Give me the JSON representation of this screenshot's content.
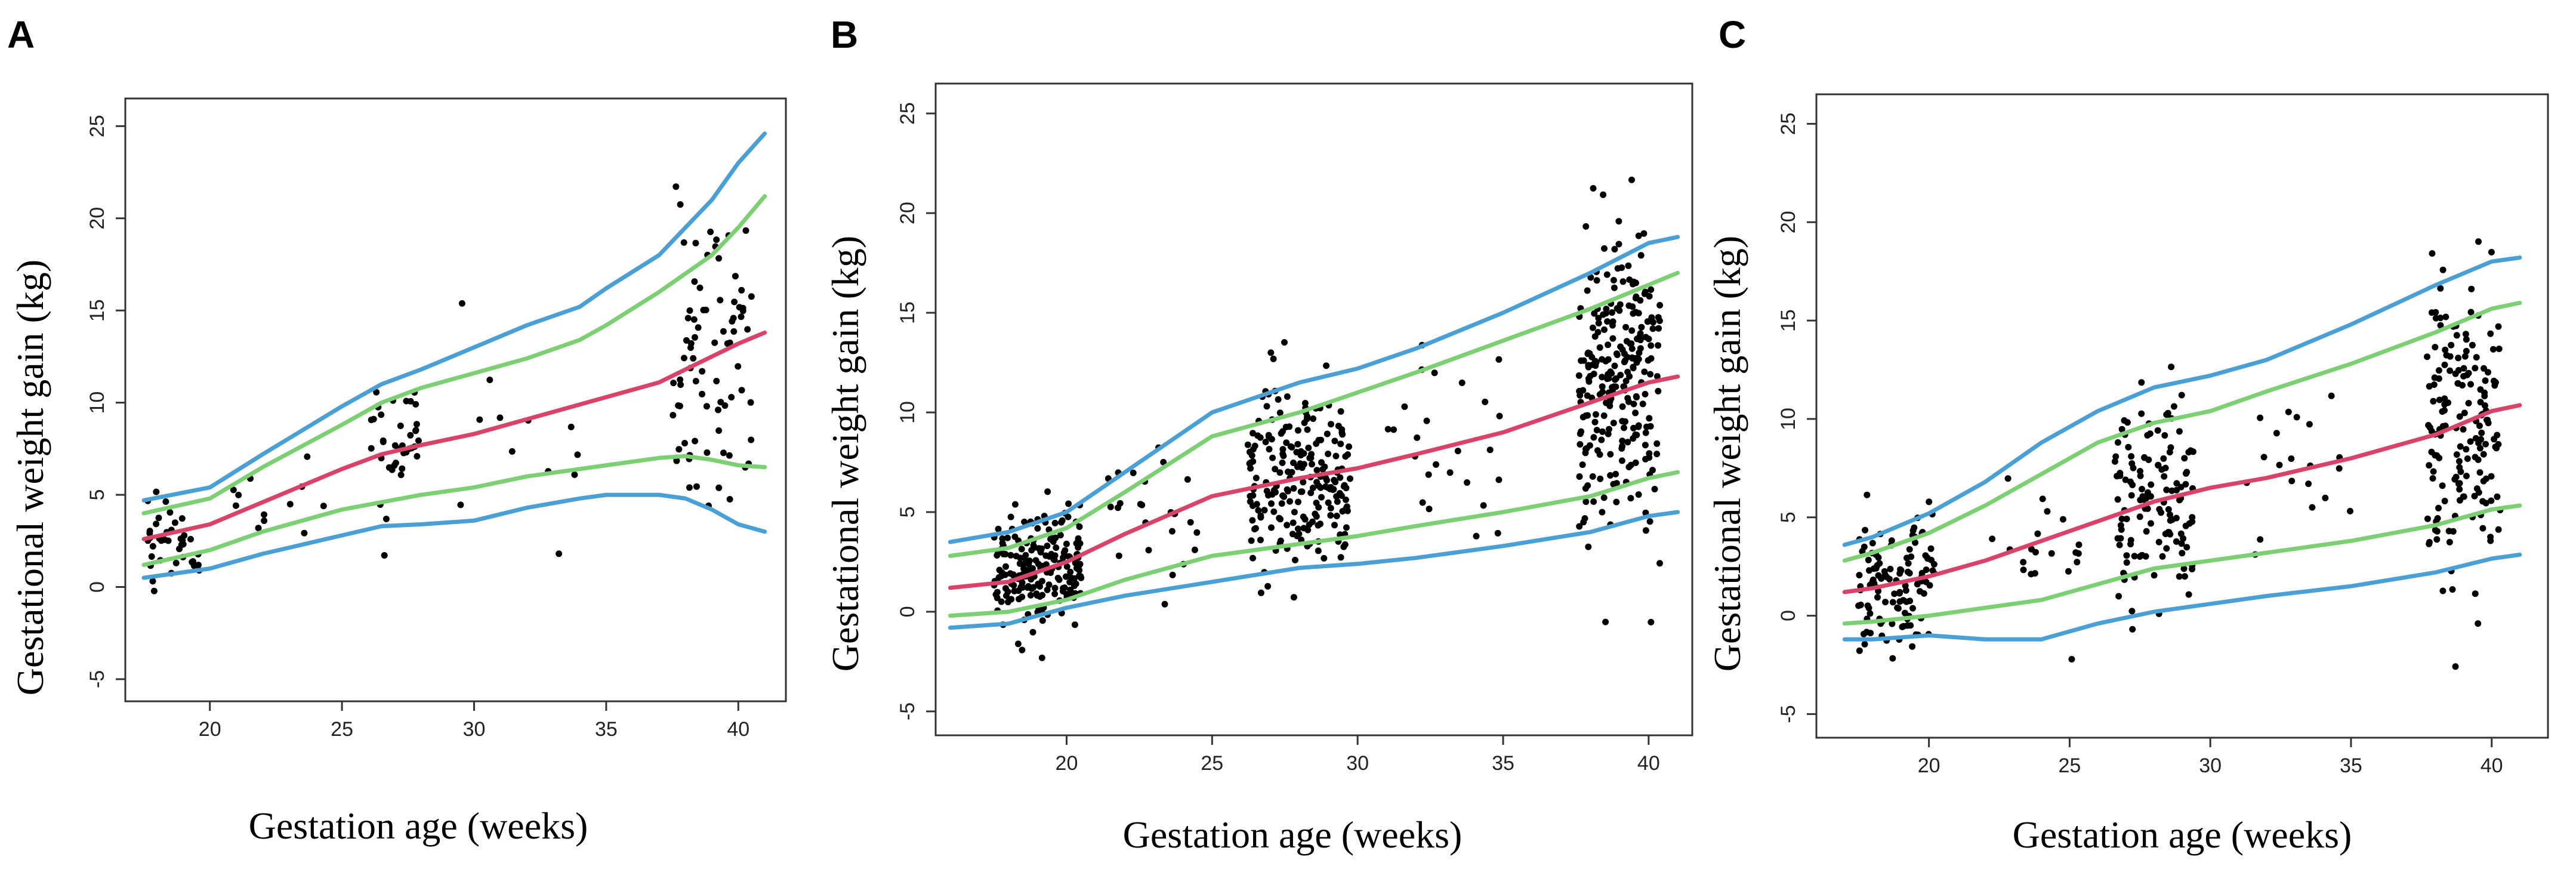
{
  "colors": {
    "p5_p95": "#4a9fd5",
    "p10_p90": "#7ccf72",
    "median": "#d9436a",
    "points": "#000000"
  },
  "chart_data": [
    {
      "type": "scatter",
      "panel": "A",
      "xlabel": "Gestation age (weeks)",
      "ylabel": "Gestational weight gain (kg)",
      "xlim": [
        16.8,
        41.8
      ],
      "ylim": [
        -6.2,
        26.5
      ],
      "xticks": [
        20,
        25,
        30,
        35,
        40
      ],
      "yticks": [
        -5,
        0,
        5,
        10,
        15,
        20,
        25
      ],
      "curves": {
        "p5": {
          "x": [
            17.5,
            20,
            22,
            25,
            26.5,
            28,
            30,
            32,
            34,
            35,
            37,
            38,
            39,
            40,
            41
          ],
          "y": [
            0.5,
            1.0,
            1.8,
            2.8,
            3.3,
            3.4,
            3.6,
            4.3,
            4.8,
            5.0,
            5.0,
            4.8,
            4.2,
            3.4,
            3.0
          ]
        },
        "p10": {
          "x": [
            17.5,
            20,
            22,
            25,
            26.5,
            28,
            30,
            32,
            34,
            35,
            37,
            38,
            39,
            40,
            41
          ],
          "y": [
            1.2,
            2.0,
            3.0,
            4.2,
            4.6,
            5.0,
            5.4,
            6.0,
            6.4,
            6.6,
            7.0,
            7.1,
            6.9,
            6.6,
            6.5
          ]
        },
        "p50": {
          "x": [
            17.5,
            20,
            22,
            25,
            26.5,
            28,
            30,
            32,
            34,
            35,
            37,
            38,
            39,
            40,
            41
          ],
          "y": [
            2.6,
            3.4,
            4.6,
            6.4,
            7.2,
            7.7,
            8.3,
            9.1,
            9.9,
            10.3,
            11.1,
            11.8,
            12.5,
            13.2,
            13.8
          ]
        },
        "p90": {
          "x": [
            17.5,
            20,
            22,
            25,
            26.5,
            28,
            30,
            32,
            34,
            35,
            37,
            38,
            39,
            40,
            41
          ],
          "y": [
            4.0,
            4.8,
            6.5,
            8.8,
            10.0,
            10.8,
            11.6,
            12.4,
            13.4,
            14.2,
            16.0,
            17.0,
            18.0,
            19.5,
            21.2
          ]
        },
        "p95": {
          "x": [
            17.5,
            20,
            22,
            25,
            26.5,
            28,
            30,
            32,
            34,
            35,
            37,
            38,
            39,
            40,
            41
          ],
          "y": [
            4.7,
            5.4,
            7.2,
            9.8,
            11.0,
            11.8,
            13.0,
            14.2,
            15.2,
            16.2,
            18.0,
            19.5,
            21.0,
            23.0,
            24.6
          ]
        }
      },
      "clusters": [
        {
          "x_center": 18.6,
          "x_spread": 1.0,
          "y_mean": 2.8,
          "y_sd": 1.2,
          "n": 40
        },
        {
          "x_center": 22.5,
          "x_spread": 2.0,
          "y_mean": 4.5,
          "y_sd": 1.5,
          "n": 12
        },
        {
          "x_center": 27.0,
          "x_spread": 0.9,
          "y_mean": 7.2,
          "y_sd": 2.0,
          "n": 40
        },
        {
          "x_center": 31.5,
          "x_spread": 2.5,
          "y_mean": 8.8,
          "y_sd": 2.0,
          "n": 12
        },
        {
          "x_center": 39.0,
          "x_spread": 1.5,
          "y_mean": 12.5,
          "y_sd": 3.8,
          "n": 80
        }
      ]
    },
    {
      "type": "scatter",
      "panel": "B",
      "xlabel": "Gestation age (weeks)",
      "ylabel": "Gestational weight gain (kg)",
      "xlim": [
        15.5,
        41.5
      ],
      "ylim": [
        -6.2,
        26.5
      ],
      "xticks": [
        20,
        25,
        30,
        35,
        40
      ],
      "yticks": [
        -5,
        0,
        5,
        10,
        15,
        20,
        25
      ],
      "curves": {
        "p5": {
          "x": [
            16,
            18,
            20,
            22,
            25,
            28,
            30,
            32,
            35,
            38,
            40,
            41
          ],
          "y": [
            -0.8,
            -0.6,
            0.2,
            0.8,
            1.5,
            2.2,
            2.4,
            2.7,
            3.3,
            4.0,
            4.8,
            5.0
          ]
        },
        "p10": {
          "x": [
            16,
            18,
            20,
            22,
            25,
            28,
            30,
            32,
            35,
            38,
            40,
            41
          ],
          "y": [
            -0.2,
            0.0,
            0.6,
            1.6,
            2.8,
            3.4,
            3.8,
            4.3,
            5.0,
            5.8,
            6.7,
            7.0
          ]
        },
        "p50": {
          "x": [
            16,
            18,
            20,
            22,
            25,
            28,
            30,
            32,
            35,
            38,
            40,
            41
          ],
          "y": [
            1.2,
            1.5,
            2.5,
            3.9,
            5.8,
            6.7,
            7.2,
            7.9,
            9.0,
            10.5,
            11.5,
            11.8
          ]
        },
        "p90": {
          "x": [
            16,
            18,
            20,
            22,
            25,
            28,
            30,
            32,
            35,
            38,
            40,
            41
          ],
          "y": [
            2.8,
            3.2,
            4.2,
            6.0,
            8.8,
            10.0,
            11.0,
            12.0,
            13.6,
            15.2,
            16.4,
            17.0
          ]
        },
        "p95": {
          "x": [
            16,
            18,
            20,
            22,
            25,
            28,
            30,
            32,
            35,
            38,
            40,
            41
          ],
          "y": [
            3.5,
            4.0,
            5.0,
            7.0,
            10.0,
            11.5,
            12.2,
            13.2,
            15.0,
            17.0,
            18.5,
            18.8
          ]
        }
      },
      "clusters": [
        {
          "x_center": 19.0,
          "x_spread": 1.5,
          "y_mean": 2.2,
          "y_sd": 1.5,
          "n": 200
        },
        {
          "x_center": 23.0,
          "x_spread": 1.6,
          "y_mean": 4.8,
          "y_sd": 2.0,
          "n": 25
        },
        {
          "x_center": 28.0,
          "x_spread": 1.8,
          "y_mean": 6.8,
          "y_sd": 2.5,
          "n": 220
        },
        {
          "x_center": 33.0,
          "x_spread": 2.0,
          "y_mean": 8.5,
          "y_sd": 2.5,
          "n": 25
        },
        {
          "x_center": 39.0,
          "x_spread": 1.4,
          "y_mean": 11.5,
          "y_sd": 3.8,
          "n": 260
        }
      ]
    },
    {
      "type": "scatter",
      "panel": "C",
      "xlabel": "Gestation age (weeks)",
      "ylabel": "Gestational weight gain (kg)",
      "xlim": [
        16.0,
        42.0
      ],
      "ylim": [
        -6.2,
        26.5
      ],
      "xticks": [
        20,
        25,
        30,
        35,
        40
      ],
      "yticks": [
        -5,
        0,
        5,
        10,
        15,
        20,
        25
      ],
      "curves": {
        "p5": {
          "x": [
            17,
            18,
            20,
            22,
            24,
            26,
            28,
            30,
            32,
            35,
            38,
            40,
            41
          ],
          "y": [
            -1.2,
            -1.2,
            -1.0,
            -1.2,
            -1.2,
            -0.4,
            0.2,
            0.6,
            1.0,
            1.5,
            2.2,
            2.9,
            3.1
          ]
        },
        "p10": {
          "x": [
            17,
            18,
            20,
            22,
            24,
            26,
            28,
            30,
            32,
            35,
            38,
            40,
            41
          ],
          "y": [
            -0.4,
            -0.3,
            0.0,
            0.4,
            0.8,
            1.6,
            2.4,
            2.8,
            3.2,
            3.8,
            4.6,
            5.4,
            5.6
          ]
        },
        "p50": {
          "x": [
            17,
            18,
            20,
            22,
            24,
            26,
            28,
            30,
            32,
            35,
            38,
            40,
            41
          ],
          "y": [
            1.2,
            1.4,
            2.0,
            2.8,
            3.8,
            4.8,
            5.8,
            6.5,
            7.0,
            8.0,
            9.2,
            10.4,
            10.7
          ]
        },
        "p90": {
          "x": [
            17,
            18,
            20,
            22,
            24,
            26,
            28,
            30,
            32,
            35,
            38,
            40,
            41
          ],
          "y": [
            2.8,
            3.2,
            4.2,
            5.6,
            7.2,
            8.8,
            9.8,
            10.4,
            11.4,
            12.8,
            14.4,
            15.6,
            15.9
          ]
        },
        "p95": {
          "x": [
            17,
            18,
            20,
            22,
            24,
            26,
            28,
            30,
            32,
            35,
            38,
            40,
            41
          ],
          "y": [
            3.6,
            4.0,
            5.2,
            6.8,
            8.8,
            10.4,
            11.6,
            12.2,
            13.0,
            14.8,
            16.8,
            18.0,
            18.2
          ]
        }
      },
      "clusters": [
        {
          "x_center": 18.8,
          "x_spread": 1.4,
          "y_mean": 1.8,
          "y_sd": 1.8,
          "n": 120
        },
        {
          "x_center": 23.5,
          "x_spread": 2.0,
          "y_mean": 3.5,
          "y_sd": 2.0,
          "n": 20
        },
        {
          "x_center": 28.0,
          "x_spread": 1.4,
          "y_mean": 5.8,
          "y_sd": 2.6,
          "n": 130
        },
        {
          "x_center": 33.0,
          "x_spread": 2.0,
          "y_mean": 7.5,
          "y_sd": 2.2,
          "n": 20
        },
        {
          "x_center": 39.0,
          "x_spread": 1.3,
          "y_mean": 10.0,
          "y_sd": 3.8,
          "n": 170
        }
      ]
    }
  ]
}
